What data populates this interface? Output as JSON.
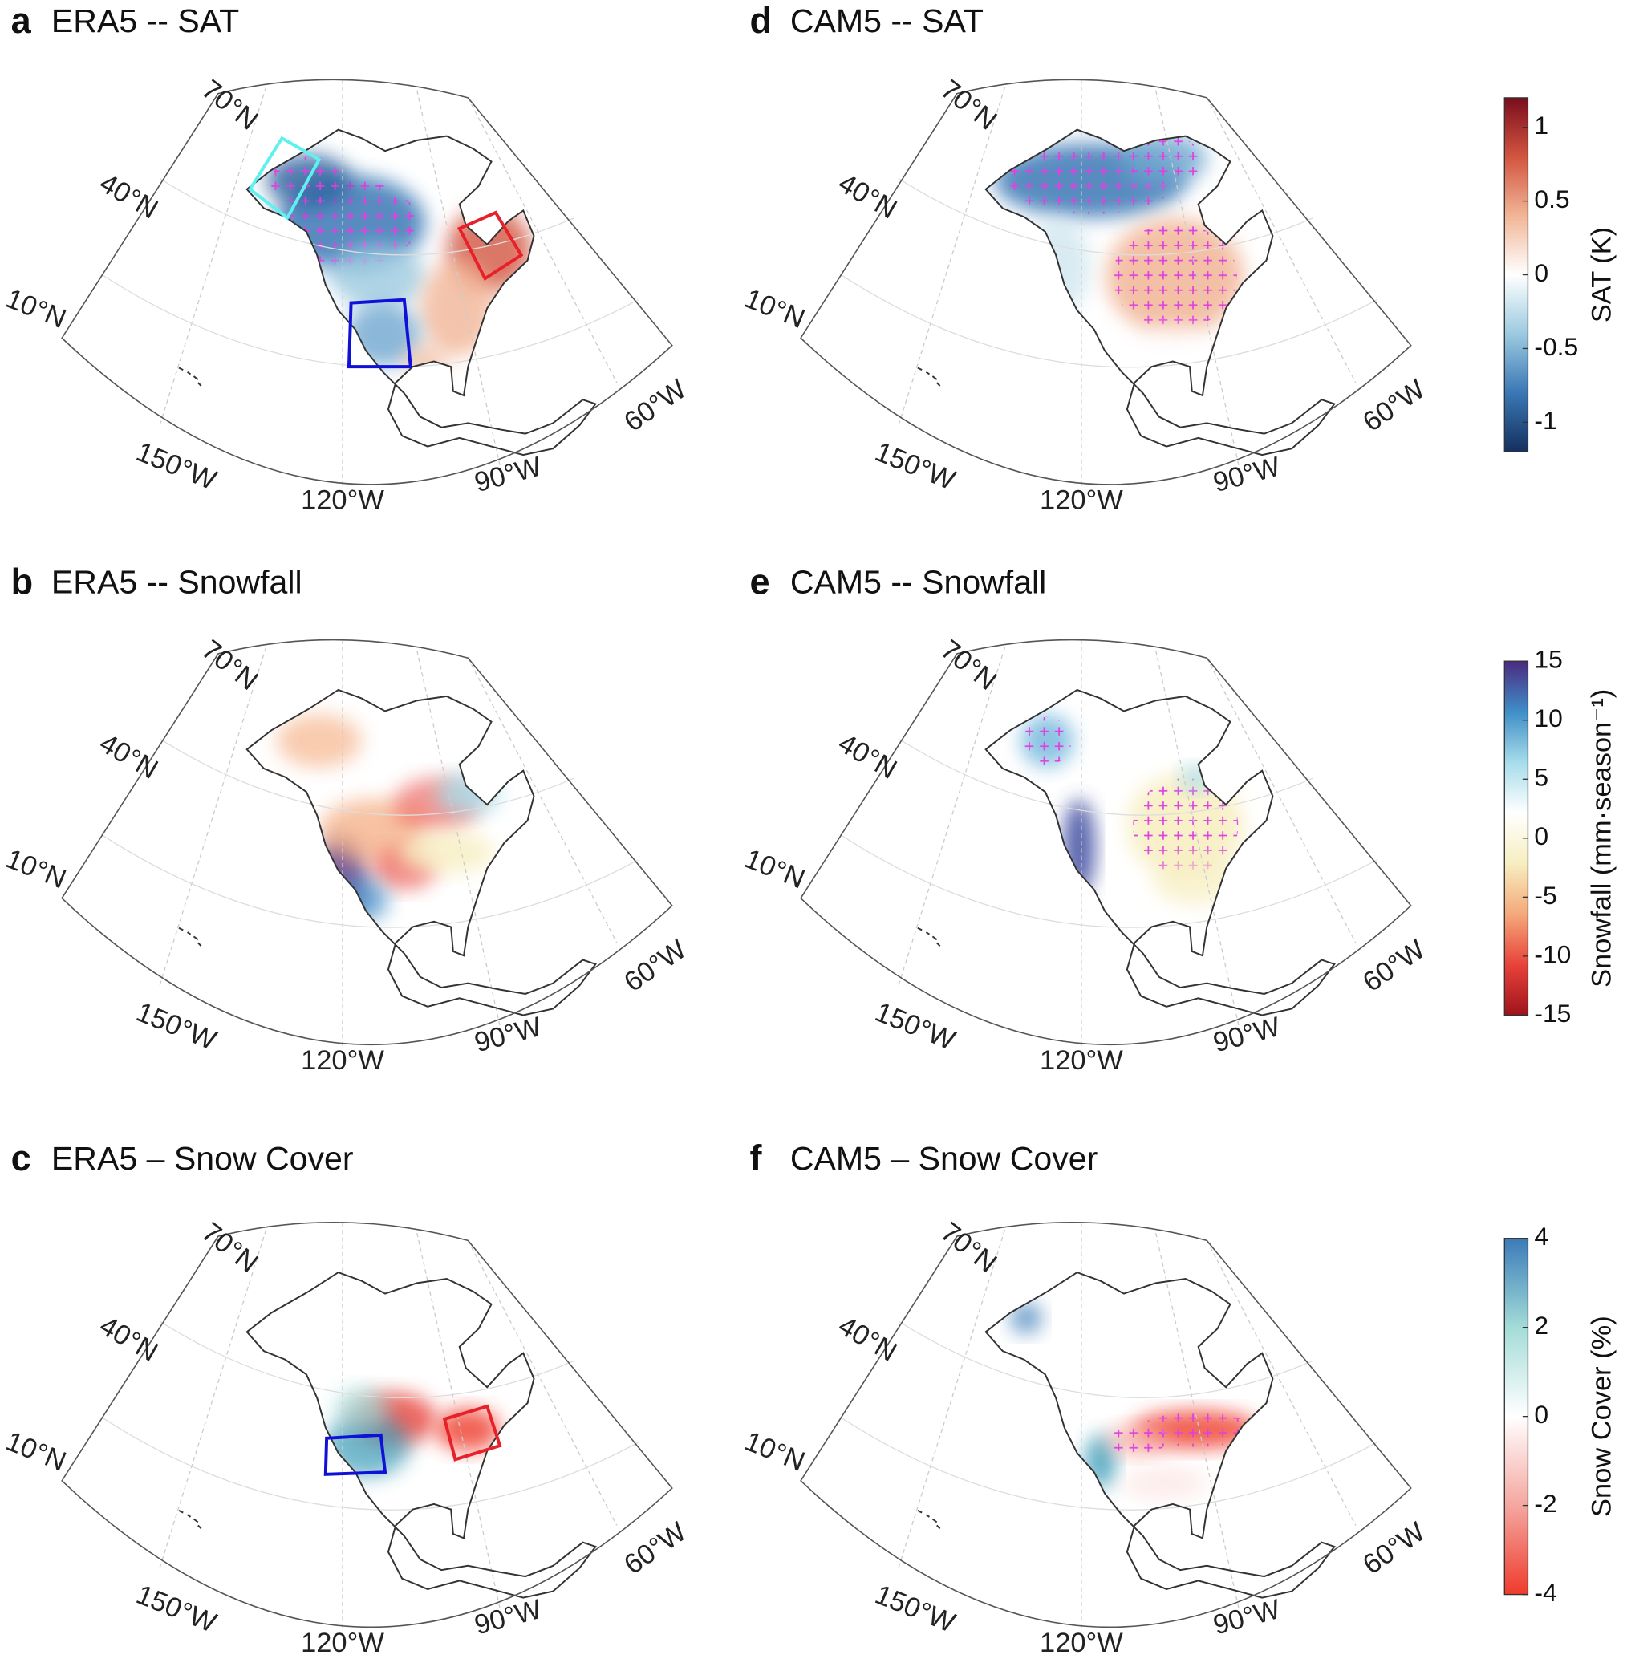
{
  "panels": [
    {
      "letter": "a",
      "title": "ERA5 -- SAT"
    },
    {
      "letter": "b",
      "title": "ERA5 -- Snowfall"
    },
    {
      "letter": "c",
      "title": "ERA5 – Snow Cover"
    },
    {
      "letter": "d",
      "title": "CAM5 -- SAT"
    },
    {
      "letter": "e",
      "title": "CAM5 -- Snowfall"
    },
    {
      "letter": "f",
      "title": "CAM5 – Snow Cover"
    }
  ],
  "graticule_labels": {
    "latitudes": [
      "70°N",
      "40°N",
      "10°N"
    ],
    "longitudes": [
      "150°W",
      "120°W",
      "90°W",
      "60°W"
    ]
  },
  "colorbars": [
    {
      "label": "SAT (K)",
      "lim": [
        -1.2,
        1.2
      ],
      "ticks": [
        1,
        0.5,
        0,
        -0.5,
        -1
      ],
      "colors": [
        "#14305e",
        "#3a78b5",
        "#9ccae0",
        "#ffffff",
        "#f1b596",
        "#d2553f",
        "#7a0d1e"
      ]
    },
    {
      "label": "Snowfall (mm·season⁻¹)",
      "lim": [
        -15,
        15
      ],
      "ticks": [
        15,
        10,
        5,
        0,
        -5,
        -10,
        -15
      ],
      "colors": [
        "#a0131c",
        "#e8433a",
        "#f4a97a",
        "#f7eec0",
        "#ffffff",
        "#a6dcea",
        "#3f8ec8",
        "#4b2a7f"
      ]
    },
    {
      "label": "Snow Cover (%)",
      "lim": [
        -4,
        4
      ],
      "ticks": [
        4,
        2,
        0,
        -2,
        -4
      ],
      "colors": [
        "#ef3b2c",
        "#f4a7a0",
        "#ffffff",
        "#a3dcd8",
        "#3a7bb8"
      ]
    }
  ]
}
